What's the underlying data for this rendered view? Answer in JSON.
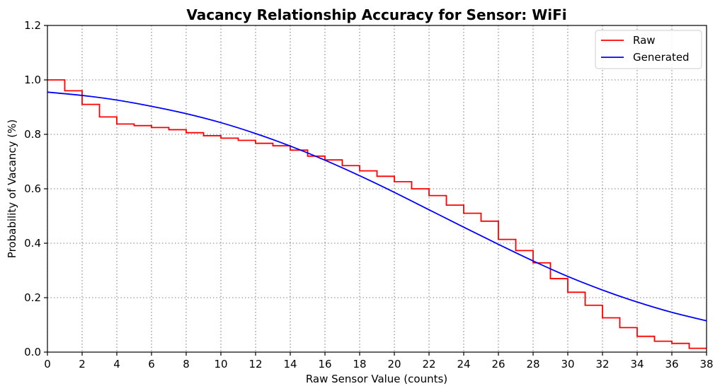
{
  "chart_data": {
    "type": "line",
    "title": "Vacancy Relationship Accuracy for Sensor: WiFi",
    "xlabel": "Raw Sensor Value (counts)",
    "ylabel": "Probability of Vacancy (%)",
    "xlim": [
      0,
      38
    ],
    "ylim": [
      0,
      1.2
    ],
    "xticks": [
      "0",
      "2",
      "4",
      "6",
      "8",
      "10",
      "12",
      "14",
      "16",
      "18",
      "20",
      "22",
      "24",
      "26",
      "28",
      "30",
      "32",
      "34",
      "36",
      "38"
    ],
    "yticks": [
      "0.0",
      "0.2",
      "0.4",
      "0.6",
      "0.8",
      "1.0",
      "1.2"
    ],
    "grid": true,
    "legend_position": "top-right",
    "series": [
      {
        "name": "Raw",
        "color": "#ff0000",
        "style": "step",
        "x": [
          0,
          1,
          2,
          3,
          4,
          5,
          6,
          7,
          8,
          9,
          10,
          11,
          12,
          13,
          14,
          15,
          16,
          17,
          18,
          19,
          20,
          21,
          22,
          23,
          24,
          25,
          26,
          27,
          28,
          29,
          30,
          31,
          32,
          33,
          34,
          35,
          36,
          37
        ],
        "values": [
          1.0,
          0.96,
          0.91,
          0.864,
          0.838,
          0.832,
          0.825,
          0.817,
          0.806,
          0.795,
          0.786,
          0.778,
          0.767,
          0.758,
          0.742,
          0.72,
          0.706,
          0.685,
          0.666,
          0.646,
          0.626,
          0.6,
          0.575,
          0.54,
          0.51,
          0.481,
          0.414,
          0.373,
          0.328,
          0.27,
          0.22,
          0.172,
          0.126,
          0.09,
          0.058,
          0.04,
          0.032,
          0.014
        ]
      },
      {
        "name": "Generated",
        "color": "#0000ff",
        "style": "line",
        "x": [
          0,
          2,
          4,
          6,
          8,
          10,
          12,
          14,
          16,
          18,
          20,
          22,
          24,
          26,
          28,
          30,
          32,
          34,
          36,
          38
        ],
        "values": [
          0.955,
          0.943,
          0.926,
          0.903,
          0.876,
          0.843,
          0.803,
          0.757,
          0.705,
          0.648,
          0.587,
          0.523,
          0.459,
          0.396,
          0.335,
          0.278,
          0.228,
          0.184,
          0.146,
          0.115
        ]
      }
    ]
  }
}
